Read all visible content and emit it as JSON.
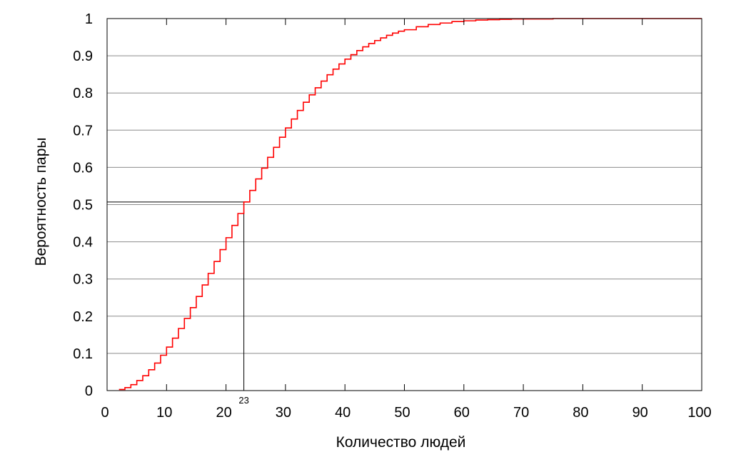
{
  "chart_data": {
    "type": "line",
    "step": true,
    "xlabel": "Количество людей",
    "ylabel": "Вероятность пары",
    "xlim": [
      0,
      100
    ],
    "ylim": [
      0,
      1
    ],
    "x_ticks": [
      "0",
      "10",
      "20",
      "30",
      "40",
      "50",
      "60",
      "70",
      "80",
      "90",
      "100"
    ],
    "y_ticks": [
      "0",
      "0.1",
      "0.2",
      "0.3",
      "0.4",
      "0.5",
      "0.6",
      "0.7",
      "0.8",
      "0.9",
      "1"
    ],
    "grid": "horizontal",
    "series": [
      {
        "color": "#ff0000",
        "x": [
          2,
          3,
          4,
          5,
          6,
          7,
          8,
          9,
          10,
          11,
          12,
          13,
          14,
          15,
          16,
          17,
          18,
          19,
          20,
          21,
          22,
          23,
          24,
          25,
          26,
          27,
          28,
          29,
          30,
          31,
          32,
          33,
          34,
          35,
          36,
          37,
          38,
          39,
          40,
          41,
          42,
          43,
          44,
          45,
          46,
          47,
          48,
          49,
          50,
          52,
          54,
          56,
          58,
          60,
          62,
          64,
          66,
          68,
          70,
          75,
          80,
          90,
          100
        ],
        "y": [
          0.003,
          0.008,
          0.016,
          0.027,
          0.04,
          0.056,
          0.074,
          0.095,
          0.117,
          0.141,
          0.167,
          0.194,
          0.223,
          0.253,
          0.284,
          0.315,
          0.347,
          0.379,
          0.411,
          0.444,
          0.476,
          0.507,
          0.538,
          0.569,
          0.598,
          0.627,
          0.654,
          0.681,
          0.706,
          0.73,
          0.753,
          0.775,
          0.795,
          0.814,
          0.832,
          0.849,
          0.864,
          0.878,
          0.891,
          0.903,
          0.914,
          0.924,
          0.933,
          0.941,
          0.948,
          0.955,
          0.961,
          0.966,
          0.97,
          0.978,
          0.984,
          0.988,
          0.992,
          0.994,
          0.996,
          0.997,
          0.998,
          0.999,
          0.999,
          1.0,
          1.0,
          1.0,
          1.0
        ]
      }
    ],
    "annotations": [
      {
        "text": "23",
        "x": 23,
        "y": 0.507,
        "color": "#000000"
      }
    ]
  }
}
